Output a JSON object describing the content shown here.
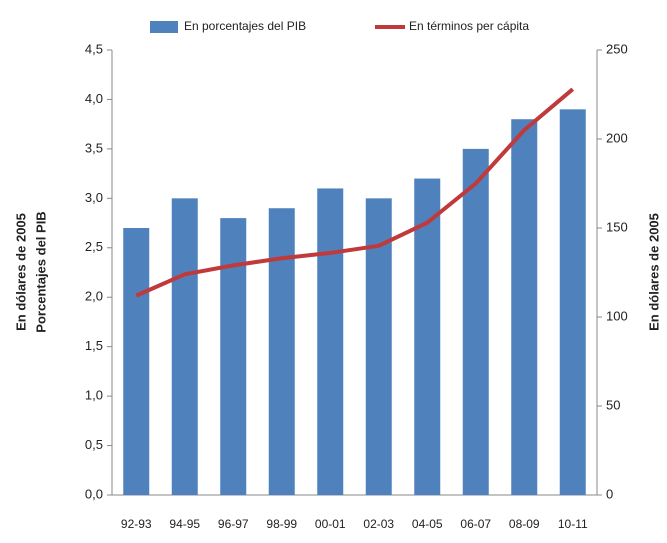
{
  "chart_data": {
    "type": "bar",
    "categories": [
      "92-93",
      "94-95",
      "96-97",
      "98-99",
      "00-01",
      "02-03",
      "04-05",
      "06-07",
      "08-09",
      "10-11"
    ],
    "series": [
      {
        "name": "En porcentajes del PIB",
        "color": "#4f81bd",
        "type": "bar",
        "axis": "y",
        "values": [
          2.7,
          3.0,
          2.8,
          2.9,
          3.1,
          3.0,
          3.2,
          3.5,
          3.8,
          3.9
        ]
      },
      {
        "name": "En términos per cápita",
        "color": "#c0393b",
        "type": "line",
        "axis": "y2",
        "values": [
          112,
          124,
          129,
          133,
          136,
          140,
          153,
          175,
          205,
          228
        ]
      }
    ],
    "ylabel": [
      "En dólares de 2005",
      "Porcentajes del PIB"
    ],
    "y2label": "En dólares de 2005",
    "ylim": [
      0,
      4.5
    ],
    "yticks": [
      {
        "value": 0,
        "label": "0,0"
      },
      {
        "value": 0.5,
        "label": "0,5"
      },
      {
        "value": 1,
        "label": "1,0"
      },
      {
        "value": 1.5,
        "label": "1,5"
      },
      {
        "value": 2,
        "label": "2,0"
      },
      {
        "value": 2.5,
        "label": "2,5"
      },
      {
        "value": 3,
        "label": "3,0"
      },
      {
        "value": 3.5,
        "label": "3,5"
      },
      {
        "value": 4,
        "label": "4,0"
      },
      {
        "value": 4.5,
        "label": "4,5"
      }
    ],
    "y2lim": [
      0,
      250
    ],
    "y2ticks": [
      0,
      50,
      100,
      150,
      200,
      250
    ],
    "legend": "top"
  }
}
